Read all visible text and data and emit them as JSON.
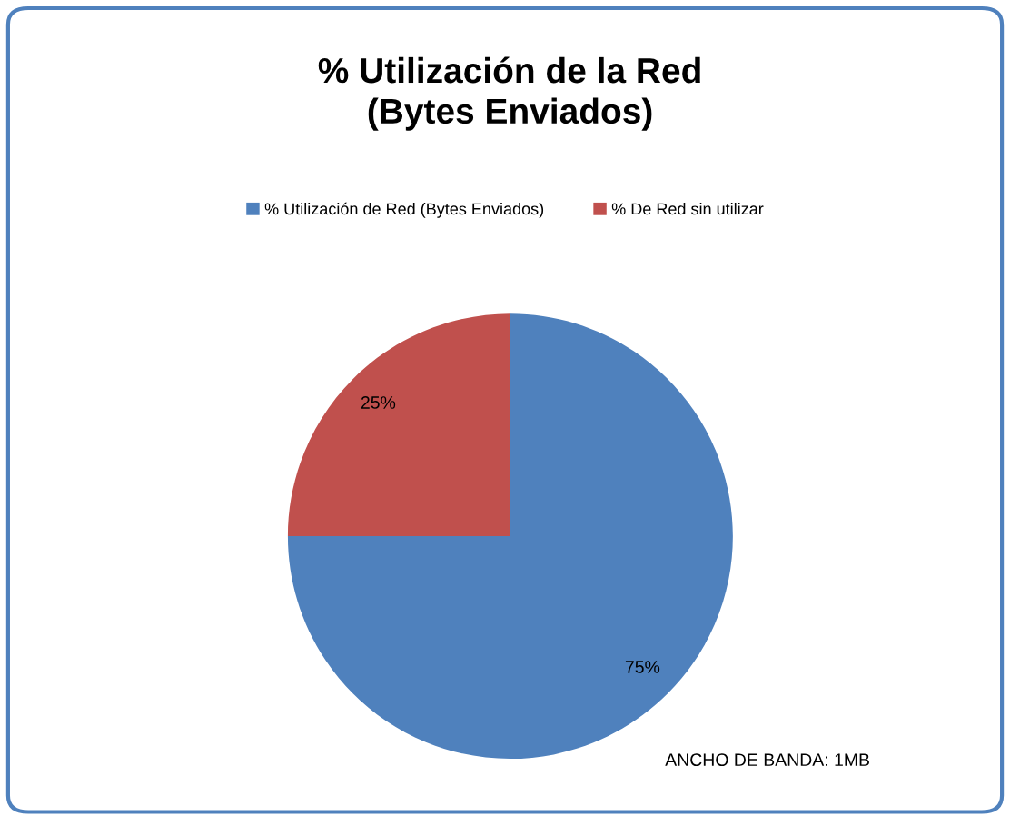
{
  "chart_data": {
    "type": "pie",
    "title": "% Utilización de la Red\n(Bytes Enviados)",
    "categories": [
      "% Utilización de Red (Bytes Enviados)",
      "% De Red sin utilizar"
    ],
    "values": [
      75,
      25
    ],
    "colors": [
      "#4f81bd",
      "#c0504d"
    ],
    "value_labels": [
      "75%",
      "25%"
    ],
    "legend": "top",
    "annotations": [
      "ANCHO DE BANDA: 1MB"
    ]
  }
}
